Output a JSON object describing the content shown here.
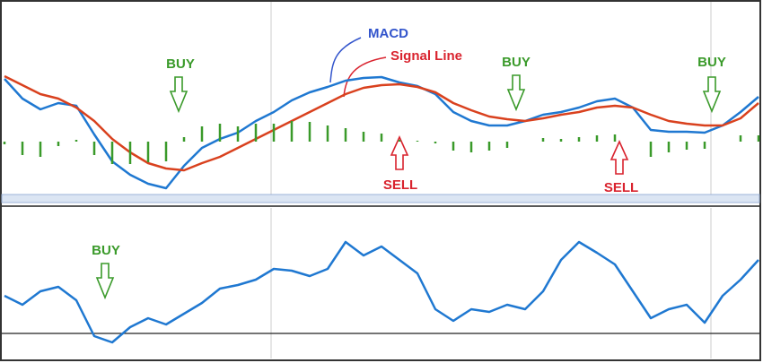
{
  "chart_data": [
    {
      "type": "line",
      "ylim": [
        -62,
        148
      ],
      "annotations": [
        "MACD",
        "Signal Line",
        "BUY",
        "BUY",
        "BUY",
        "SELL",
        "SELL"
      ],
      "series": [
        {
          "name": "MACD",
          "color": "#1f78d1",
          "values": [
            70,
            48,
            36,
            43,
            40,
            8,
            -22,
            -37,
            -47,
            -52,
            -27,
            -7,
            3,
            10,
            23,
            33,
            46,
            55,
            61,
            68,
            71,
            72,
            66,
            62,
            53,
            33,
            23,
            18,
            18,
            23,
            30,
            33,
            38,
            45,
            48,
            38,
            13,
            11,
            11,
            10,
            18,
            33,
            50
          ]
        },
        {
          "name": "Signal Line",
          "color": "#d9411e",
          "values": [
            73,
            63,
            53,
            48,
            38,
            23,
            3,
            -12,
            -24,
            -30,
            -32,
            -24,
            -17,
            -7,
            3,
            13,
            23,
            33,
            43,
            53,
            60,
            63,
            64,
            61,
            55,
            43,
            35,
            28,
            25,
            23,
            26,
            30,
            33,
            38,
            40,
            38,
            30,
            23,
            20,
            18,
            18,
            26,
            43
          ]
        },
        {
          "type": "bar",
          "color": "#3a9a2a",
          "values": [
            -3,
            -15,
            -17,
            -5,
            2,
            -15,
            -25,
            -25,
            -23,
            -22,
            5,
            17,
            20,
            17,
            20,
            20,
            23,
            22,
            18,
            15,
            11,
            9,
            2,
            1,
            -2,
            -10,
            -12,
            -10,
            -7,
            0,
            4,
            3,
            5,
            7,
            8,
            0,
            -17,
            -12,
            -9,
            -8,
            0,
            7,
            7
          ]
        }
      ]
    },
    {
      "type": "line",
      "ylim": [
        -28,
        140
      ],
      "annotations": [
        "BUY"
      ],
      "series": [
        {
          "color": "#1f78d1",
          "values": [
            42,
            32,
            47,
            52,
            37,
            -3,
            -10,
            7,
            17,
            10,
            22,
            34,
            50,
            54,
            60,
            72,
            70,
            64,
            72,
            102,
            87,
            97,
            82,
            67,
            27,
            14,
            27,
            24,
            32,
            27,
            47,
            82,
            102,
            90,
            77,
            47,
            17,
            27,
            32,
            12,
            42,
            60,
            82
          ]
        }
      ]
    }
  ]
}
